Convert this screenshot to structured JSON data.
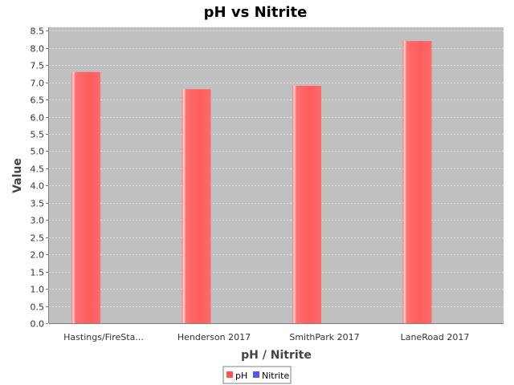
{
  "chart_data": {
    "type": "bar",
    "title": "pH vs Nitrite",
    "xlabel": "pH / Nitrite",
    "ylabel": "Value",
    "categories": [
      "Hastings/FireSta...",
      "Henderson 2017",
      "SmithPark 2017",
      "LaneRoad 2017"
    ],
    "series": [
      {
        "name": "pH",
        "values": [
          7.3,
          6.8,
          6.9,
          8.2
        ],
        "color": "#ff5555"
      },
      {
        "name": "Nitrite",
        "values": [
          0,
          0,
          0,
          0
        ],
        "color": "#5555ff"
      }
    ],
    "ylim": [
      0,
      8.6
    ],
    "yticks": [
      "0.0",
      "0.5",
      "1.0",
      "1.5",
      "2.0",
      "2.5",
      "3.0",
      "3.5",
      "4.0",
      "4.5",
      "5.0",
      "5.5",
      "6.0",
      "6.5",
      "7.0",
      "7.5",
      "8.0",
      "8.5"
    ],
    "grid": true,
    "legend": "bottom-center",
    "plot_background": "#c0c0c0"
  }
}
